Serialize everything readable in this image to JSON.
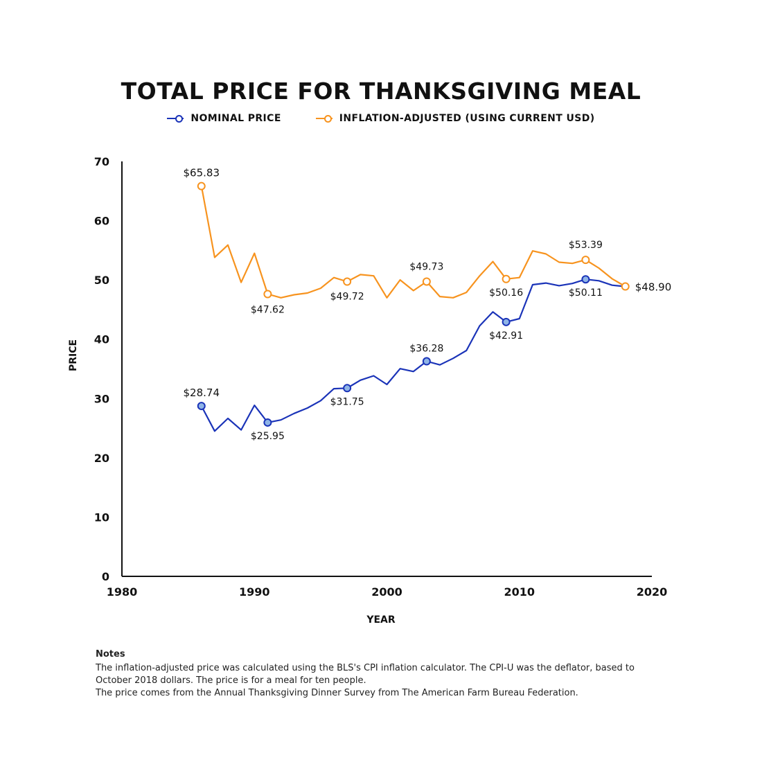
{
  "chart_data": {
    "type": "line",
    "title": "TOTAL PRICE FOR THANKSGIVING MEAL",
    "xlabel": "YEAR",
    "ylabel": "PRICE",
    "xlim": [
      1980,
      2020
    ],
    "ylim": [
      0,
      70
    ],
    "x_ticks": [
      "1980",
      "1990",
      "2000",
      "2010",
      "2020"
    ],
    "y_ticks": [
      "0",
      "10",
      "20",
      "30",
      "40",
      "50",
      "60",
      "70"
    ],
    "grid": false,
    "legend_position": "top-center",
    "x": [
      1986,
      1987,
      1988,
      1989,
      1990,
      1991,
      1992,
      1993,
      1994,
      1995,
      1996,
      1997,
      1998,
      1999,
      2000,
      2001,
      2002,
      2003,
      2004,
      2005,
      2006,
      2007,
      2008,
      2009,
      2010,
      2011,
      2012,
      2013,
      2014,
      2015,
      2016,
      2017,
      2018
    ],
    "series": [
      {
        "name": "NOMINAL PRICE",
        "color": "#1a33b8",
        "marker_fill": "#8fb4e6",
        "values": [
          28.74,
          24.51,
          26.65,
          24.7,
          28.85,
          25.95,
          26.39,
          27.49,
          28.4,
          29.64,
          31.66,
          31.75,
          33.09,
          33.83,
          32.37,
          35.04,
          34.56,
          36.28,
          35.68,
          36.78,
          38.1,
          42.26,
          44.61,
          42.91,
          43.47,
          49.2,
          49.48,
          49.04,
          49.41,
          50.11,
          49.87,
          49.12,
          48.9
        ],
        "labeled_points": [
          {
            "x": 1986,
            "label": "$28.74"
          },
          {
            "x": 1991,
            "label": "$25.95"
          },
          {
            "x": 1997,
            "label": "$31.75"
          },
          {
            "x": 2003,
            "label": "$36.28"
          },
          {
            "x": 2009,
            "label": "$42.91"
          },
          {
            "x": 2015,
            "label": "$50.11"
          }
        ]
      },
      {
        "name": "INFLATION-ADJUSTED (USING CURRENT USD)",
        "color": "#f7931e",
        "marker_fill": "#ffffff",
        "values": [
          65.83,
          53.8,
          55.9,
          49.6,
          54.5,
          47.62,
          47.0,
          47.5,
          47.8,
          48.6,
          50.4,
          49.72,
          50.9,
          50.7,
          47.0,
          50.0,
          48.2,
          49.73,
          47.2,
          47.0,
          47.9,
          50.7,
          53.1,
          50.16,
          50.4,
          54.9,
          54.4,
          53.0,
          52.8,
          53.39,
          52.0,
          50.2,
          48.9
        ],
        "labeled_points": [
          {
            "x": 1986,
            "label": "$65.83"
          },
          {
            "x": 1991,
            "label": "$47.62"
          },
          {
            "x": 1997,
            "label": "$49.72"
          },
          {
            "x": 2003,
            "label": "$49.73"
          },
          {
            "x": 2009,
            "label": "$50.16"
          },
          {
            "x": 2015,
            "label": "$53.39"
          },
          {
            "x": 2018,
            "label": "$48.90"
          }
        ]
      }
    ]
  },
  "notes": {
    "heading": "Notes",
    "line1": "The inflation-adjusted price was calculated using the BLS's CPI inflation calculator. The CPI-U was the deflator, based to October 2018 dollars. The price is for a meal for ten people.",
    "line2": "The price comes from the Annual Thanksgiving Dinner Survey from The American Farm Bureau Federation."
  }
}
